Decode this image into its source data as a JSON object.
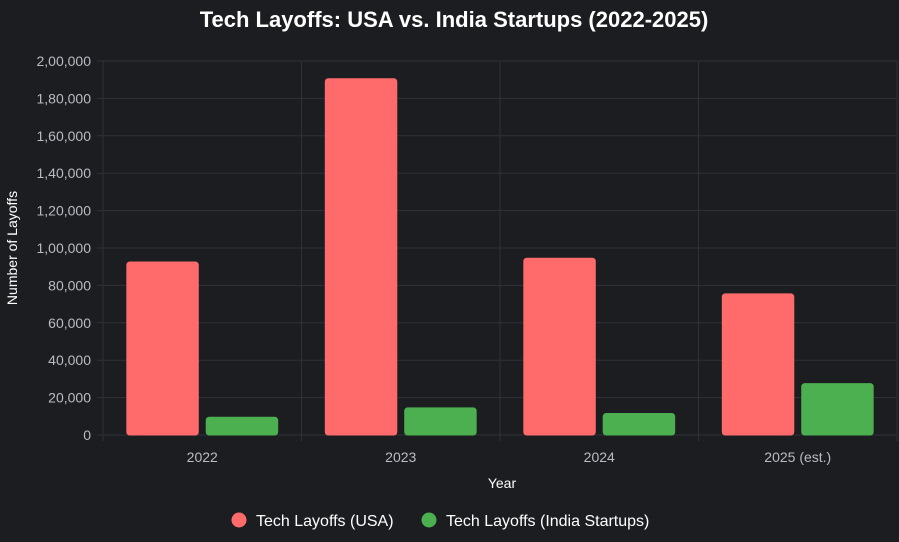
{
  "chart_data": {
    "type": "bar",
    "title": "Tech Layoffs: USA vs. India Startups (2022-2025)",
    "xlabel": "Year",
    "ylabel": "Number of Layoffs",
    "categories": [
      "2022",
      "2023",
      "2024",
      "2025 (est.)"
    ],
    "series": [
      {
        "name": "Tech Layoffs (USA)",
        "values": [
          92500,
          190500,
          94500,
          75500
        ],
        "color": "#ff6b6b"
      },
      {
        "name": "Tech Layoffs (India Startups)",
        "values": [
          9500,
          14500,
          11500,
          27500
        ],
        "color": "#4caf50"
      }
    ],
    "ylim": [
      0,
      200000
    ],
    "yticks": [
      "0",
      "20,000",
      "40,000",
      "60,000",
      "80,000",
      "1,00,000",
      "1,20,000",
      "1,40,000",
      "1,60,000",
      "1,80,000",
      "2,00,000"
    ],
    "grid": true,
    "legend_position": "bottom"
  }
}
